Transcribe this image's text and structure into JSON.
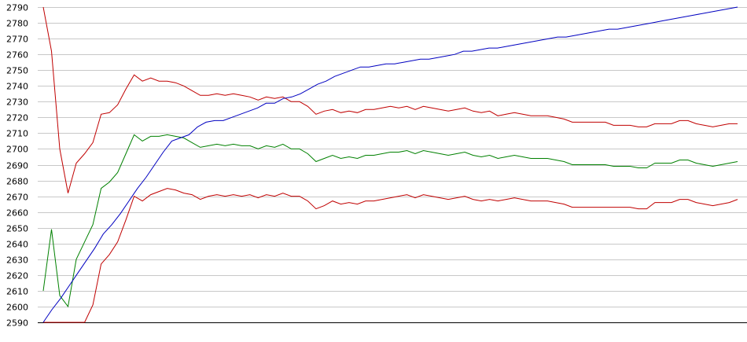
{
  "chart_data": {
    "type": "line",
    "title": "",
    "xlabel": "",
    "ylabel": "",
    "ylim": [
      2590,
      2790
    ],
    "y_ticks": [
      2590,
      2600,
      2610,
      2620,
      2630,
      2640,
      2650,
      2660,
      2670,
      2680,
      2690,
      2700,
      2710,
      2720,
      2730,
      2740,
      2750,
      2760,
      2770,
      2780,
      2790
    ],
    "grid": "horizontal",
    "legend": "none",
    "series": [
      {
        "color": "#c00000",
        "values": [
          2790,
          2762,
          2700,
          2672,
          2691,
          2697,
          2704,
          2722,
          2723,
          2728,
          2738,
          2747,
          2743,
          2745,
          2743,
          2743,
          2742,
          2740,
          2737,
          2734,
          2734,
          2735,
          2734,
          2735,
          2734,
          2733,
          2731,
          2733,
          2732,
          2733,
          2730,
          2730,
          2727,
          2722,
          2724,
          2725,
          2723,
          2724,
          2723,
          2725,
          2725,
          2726,
          2727,
          2726,
          2727,
          2725,
          2727,
          2726,
          2725,
          2724,
          2725,
          2726,
          2724,
          2723,
          2724,
          2721,
          2722,
          2723,
          2722,
          2721,
          2721,
          2721,
          2720,
          2719,
          2717,
          2717,
          2717,
          2717,
          2717,
          2715,
          2715,
          2715,
          2714,
          2714,
          2716,
          2716,
          2716,
          2718,
          2718,
          2716,
          2715,
          2714,
          2715,
          2716,
          2716
        ]
      },
      {
        "color": "#008000",
        "values": [
          2610,
          2649,
          2607,
          2600,
          2630,
          2641,
          2652,
          2675,
          2679,
          2685,
          2697,
          2709,
          2705,
          2708,
          2708,
          2709,
          2708,
          2707,
          2704,
          2701,
          2702,
          2703,
          2702,
          2703,
          2702,
          2702,
          2700,
          2702,
          2701,
          2703,
          2700,
          2700,
          2697,
          2692,
          2694,
          2696,
          2694,
          2695,
          2694,
          2696,
          2696,
          2697,
          2698,
          2698,
          2699,
          2697,
          2699,
          2698,
          2697,
          2696,
          2697,
          2698,
          2696,
          2695,
          2696,
          2694,
          2695,
          2696,
          2695,
          2694,
          2694,
          2694,
          2693,
          2692,
          2690,
          2690,
          2690,
          2690,
          2690,
          2689,
          2689,
          2689,
          2688,
          2688,
          2691,
          2691,
          2691,
          2693,
          2693,
          2691,
          2690,
          2689,
          2690,
          2691,
          2692
        ]
      },
      {
        "color": "#c00000",
        "values": [
          2590,
          2590,
          2590,
          2590,
          2590,
          2590,
          2601,
          2627,
          2633,
          2641,
          2655,
          2670,
          2667,
          2671,
          2673,
          2675,
          2674,
          2672,
          2671,
          2668,
          2670,
          2671,
          2670,
          2671,
          2670,
          2671,
          2669,
          2671,
          2670,
          2672,
          2670,
          2670,
          2667,
          2662,
          2664,
          2667,
          2665,
          2666,
          2665,
          2667,
          2667,
          2668,
          2669,
          2670,
          2671,
          2669,
          2671,
          2670,
          2669,
          2668,
          2669,
          2670,
          2668,
          2667,
          2668,
          2667,
          2668,
          2669,
          2668,
          2667,
          2667,
          2667,
          2666,
          2665,
          2663,
          2663,
          2663,
          2663,
          2663,
          2663,
          2663,
          2663,
          2662,
          2662,
          2666,
          2666,
          2666,
          2668,
          2668,
          2666,
          2665,
          2664,
          2665,
          2666,
          2668
        ]
      },
      {
        "color": "#0000c0",
        "values": [
          2590,
          2598,
          2605,
          2613,
          2621,
          2629,
          2637,
          2646,
          2652,
          2659,
          2667,
          2675,
          2682,
          2690,
          2698,
          2705,
          2707,
          2709,
          2714,
          2717,
          2718,
          2718,
          2720,
          2722,
          2724,
          2726,
          2729,
          2729,
          2732,
          2733,
          2735,
          2738,
          2741,
          2743,
          2746,
          2748,
          2750,
          2752,
          2752,
          2753,
          2754,
          2754,
          2755,
          2756,
          2757,
          2757,
          2758,
          2759,
          2760,
          2762,
          2762,
          2763,
          2764,
          2764,
          2765,
          2766,
          2767,
          2768,
          2769,
          2770,
          2771,
          2771,
          2772,
          2773,
          2774,
          2775,
          2776,
          2776,
          2777,
          2778,
          2779,
          2780,
          2781,
          2782,
          2783,
          2784,
          2785,
          2786,
          2787,
          2788,
          2789,
          2790
        ]
      }
    ]
  }
}
